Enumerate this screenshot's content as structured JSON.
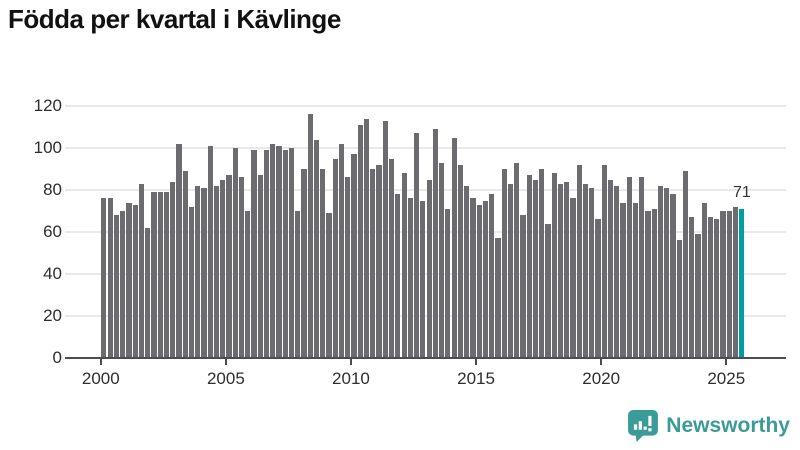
{
  "title": "Födda per kvartal i Kävlinge",
  "branding": {
    "name": "Newsworthy",
    "icon": "newsworthy-speech-bubble-chart-icon",
    "color": "#3a9b99"
  },
  "colors": {
    "bar": "#6b6b70",
    "highlight_bar": "#00a0a0",
    "axis": "#4d4d4d",
    "grid": "#e9e9e9",
    "title_text": "#111111",
    "tick_text": "#2e2e2e"
  },
  "chart_data": {
    "type": "bar",
    "title": "Födda per kvartal i Kävlinge",
    "xlabel": "",
    "ylabel": "",
    "x_start": "2000-Q1",
    "x_end": "2025-Q3",
    "frequency": "quarterly",
    "x_tick_labels": [
      "2000",
      "2005",
      "2010",
      "2015",
      "2020",
      "2025"
    ],
    "y_ticks": [
      0,
      20,
      40,
      60,
      80,
      100,
      120
    ],
    "ylim": [
      0,
      120
    ],
    "grid": true,
    "legend": "none",
    "highlight_last_bar": true,
    "last_value_label": "71",
    "values": [
      76,
      76,
      68,
      70,
      74,
      73,
      83,
      62,
      79,
      79,
      79,
      84,
      102,
      89,
      72,
      82,
      81,
      101,
      82,
      85,
      87,
      100,
      86,
      70,
      99,
      87,
      99,
      102,
      101,
      99,
      100,
      70,
      90,
      116,
      104,
      90,
      69,
      95,
      102,
      86,
      97,
      111,
      114,
      90,
      92,
      113,
      95,
      78,
      88,
      76,
      107,
      75,
      85,
      109,
      93,
      71,
      105,
      92,
      82,
      76,
      73,
      75,
      78,
      57,
      90,
      83,
      93,
      68,
      87,
      85,
      90,
      64,
      88,
      83,
      84,
      76,
      92,
      83,
      81,
      66,
      92,
      85,
      82,
      74,
      86,
      74,
      86,
      70,
      71,
      82,
      81,
      78,
      56,
      89,
      67,
      59,
      74,
      67,
      66,
      70,
      70,
      72,
      71
    ]
  }
}
